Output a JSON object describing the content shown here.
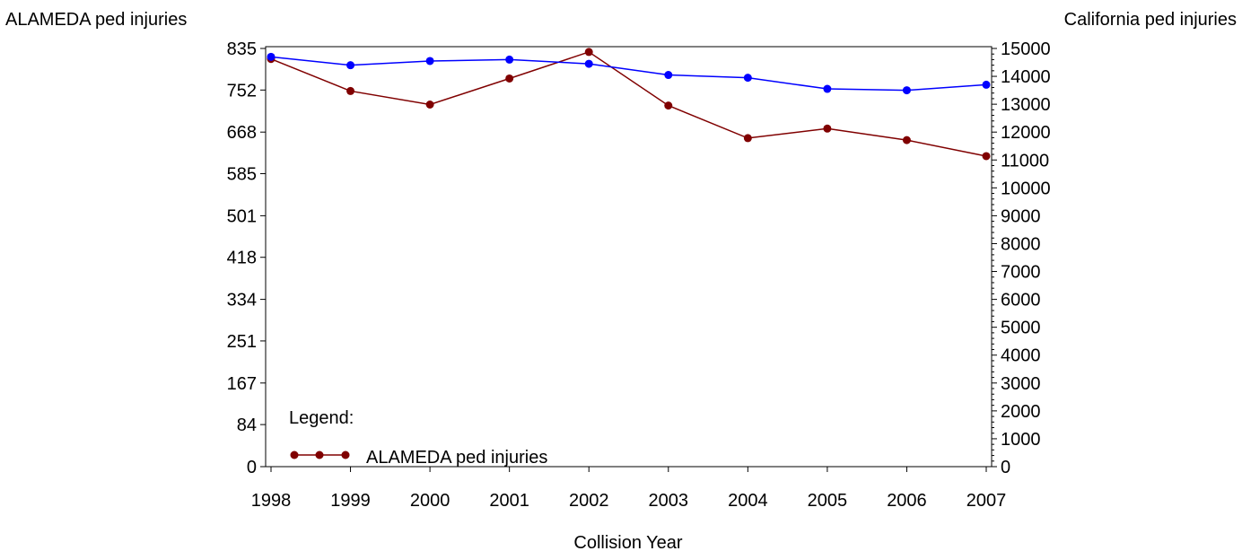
{
  "chart_data": {
    "type": "line",
    "title": "",
    "xlabel": "Collision Year",
    "ylabel_left": "ALAMEDA ped injuries",
    "ylabel_right": "California ped injuries",
    "x": [
      1998,
      1999,
      2000,
      2001,
      2002,
      2003,
      2004,
      2005,
      2006,
      2007
    ],
    "y_left_ticks": [
      0,
      84,
      167,
      251,
      334,
      418,
      501,
      585,
      668,
      752,
      835
    ],
    "y_left_range": [
      0,
      835
    ],
    "y_right_ticks": [
      0,
      1000,
      2000,
      3000,
      4000,
      5000,
      6000,
      7000,
      8000,
      9000,
      10000,
      11000,
      12000,
      13000,
      14000,
      15000
    ],
    "y_right_range": [
      0,
      15000
    ],
    "series": [
      {
        "name": "ALAMEDA ped injuries",
        "axis": "left",
        "color": "#800000",
        "values": [
          814,
          750,
          723,
          775,
          828,
          721,
          656,
          675,
          652,
          620
        ]
      },
      {
        "axis": "right",
        "color": "#0000ff",
        "values": [
          14700,
          14400,
          14550,
          14600,
          14450,
          14050,
          13950,
          13550,
          13500,
          13700
        ]
      }
    ],
    "legend": {
      "title": "Legend:",
      "placement": "bottom-left",
      "entries": [
        "ALAMEDA ped injuries"
      ]
    },
    "grid": false
  }
}
